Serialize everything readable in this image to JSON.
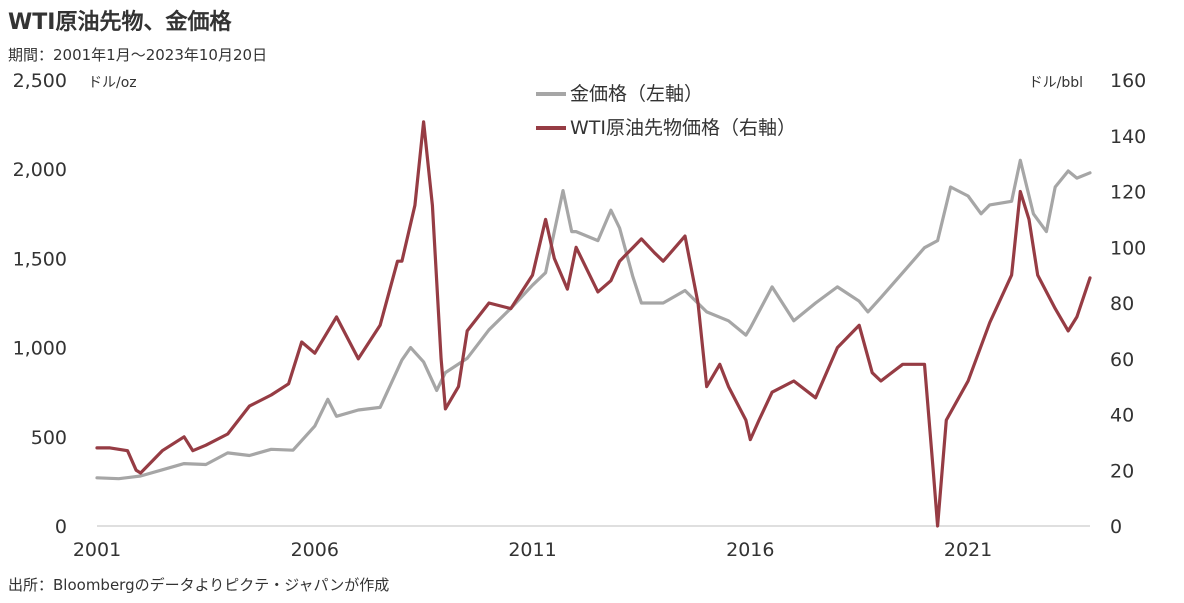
{
  "header": {
    "title": "WTI原油先物、金価格",
    "subtitle": "期間：2001年1月～2023年10月20日"
  },
  "footer": {
    "source": "出所：Bloombergのデータよりピクテ・ジャパンが作成"
  },
  "chart_data": {
    "type": "line",
    "left_axis": {
      "unit": "ドル/oz",
      "range": [
        0,
        2500
      ],
      "ticks": [
        "0",
        "500",
        "1,000",
        "1,500",
        "2,000",
        "2,500"
      ]
    },
    "right_axis": {
      "unit": "ドル/bbl",
      "range": [
        0,
        160
      ],
      "ticks": [
        "0",
        "20",
        "40",
        "60",
        "80",
        "100",
        "120",
        "140",
        "160"
      ]
    },
    "x_axis": {
      "range": [
        2001,
        2023.8
      ],
      "ticks": [
        2001,
        2006,
        2011,
        2016,
        2021
      ]
    },
    "legend": {
      "placement": "top-center"
    },
    "series": [
      {
        "name": "金価格（左軸）",
        "axis": "left",
        "color": "#a6a6a6",
        "x": [
          2001,
          2001.5,
          2002,
          2002.5,
          2003,
          2003.5,
          2004,
          2004.5,
          2005,
          2005.5,
          2006,
          2006.3,
          2006.5,
          2007,
          2007.5,
          2008,
          2008.2,
          2008.5,
          2008.8,
          2009,
          2009.5,
          2010,
          2010.5,
          2011,
          2011.3,
          2011.7,
          2011.9,
          2012,
          2012.5,
          2012.8,
          2013,
          2013.3,
          2013.5,
          2014,
          2014.5,
          2015,
          2015.5,
          2015.9,
          2016,
          2016.5,
          2017,
          2017.5,
          2018,
          2018.5,
          2018.7,
          2019,
          2019.5,
          2020,
          2020.3,
          2020.6,
          2021,
          2021.3,
          2021.5,
          2022,
          2022.2,
          2022.5,
          2022.8,
          2023,
          2023.3,
          2023.5,
          2023.8
        ],
        "values": [
          270,
          265,
          280,
          315,
          350,
          345,
          410,
          395,
          430,
          425,
          560,
          710,
          615,
          650,
          665,
          930,
          1000,
          920,
          760,
          860,
          940,
          1100,
          1220,
          1350,
          1420,
          1880,
          1650,
          1650,
          1600,
          1770,
          1670,
          1400,
          1250,
          1250,
          1320,
          1200,
          1150,
          1070,
          1110,
          1340,
          1150,
          1250,
          1340,
          1260,
          1200,
          1280,
          1420,
          1560,
          1600,
          1900,
          1850,
          1750,
          1800,
          1820,
          2050,
          1750,
          1650,
          1900,
          1990,
          1950,
          1980
        ]
      },
      {
        "name": "WTI原油先物価格（右軸）",
        "axis": "right",
        "color": "#963c44",
        "x": [
          2001,
          2001.3,
          2001.7,
          2001.9,
          2002,
          2002.5,
          2003,
          2003.2,
          2003.5,
          2004,
          2004.5,
          2005,
          2005.4,
          2005.7,
          2006,
          2006.5,
          2007,
          2007.5,
          2007.9,
          2008,
          2008.3,
          2008.5,
          2008.7,
          2008.9,
          2009,
          2009.3,
          2009.5,
          2010,
          2010.5,
          2011,
          2011.3,
          2011.5,
          2011.8,
          2012,
          2012.5,
          2012.8,
          2013,
          2013.5,
          2013.8,
          2014,
          2014.5,
          2014.8,
          2015,
          2015.3,
          2015.5,
          2015.9,
          2016,
          2016.2,
          2016.5,
          2017,
          2017.5,
          2018,
          2018.5,
          2018.8,
          2019,
          2019.5,
          2020,
          2020.2,
          2020.3,
          2020.5,
          2021,
          2021.5,
          2022,
          2022.2,
          2022.4,
          2022.6,
          2023,
          2023.3,
          2023.5,
          2023.8
        ],
        "values": [
          28,
          28,
          27,
          20,
          19,
          27,
          32,
          27,
          29,
          33,
          43,
          47,
          51,
          66,
          62,
          75,
          60,
          72,
          95,
          95,
          115,
          145,
          115,
          60,
          42,
          50,
          70,
          80,
          78,
          90,
          110,
          96,
          85,
          100,
          84,
          88,
          95,
          103,
          98,
          95,
          104,
          80,
          50,
          58,
          50,
          38,
          31,
          38,
          48,
          52,
          46,
          64,
          72,
          55,
          52,
          58,
          58,
          20,
          0,
          38,
          52,
          73,
          90,
          120,
          110,
          90,
          78,
          70,
          75,
          89
        ]
      }
    ]
  }
}
